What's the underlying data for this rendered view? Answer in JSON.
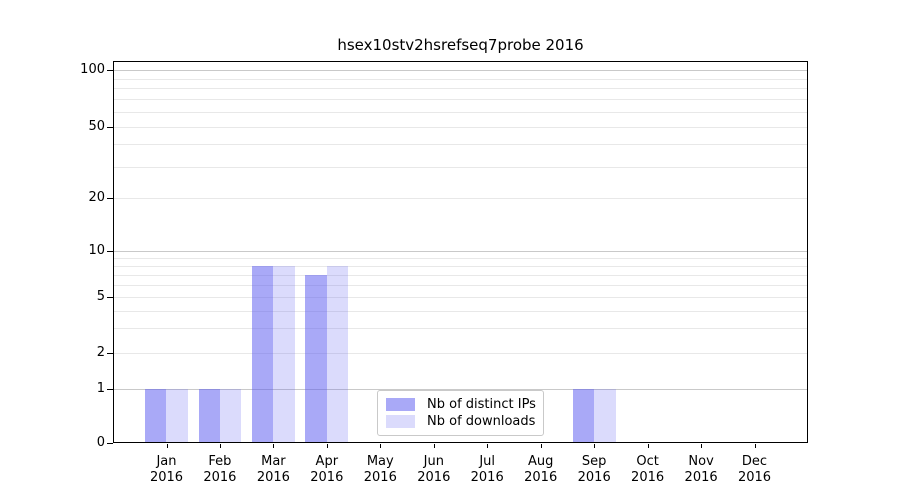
{
  "chart_data": {
    "type": "bar",
    "title": "hsex10stv2hsrefseq7probe 2016",
    "categories": [
      "Jan",
      "Feb",
      "Mar",
      "Apr",
      "May",
      "Jun",
      "Jul",
      "Aug",
      "Sep",
      "Oct",
      "Nov",
      "Dec"
    ],
    "year_label": "2016",
    "series": [
      {
        "name": "Nb of distinct IPs",
        "color": "#5a5af0",
        "alpha": 0.52,
        "values": [
          1,
          1,
          8,
          7,
          0,
          0,
          0,
          0,
          1,
          0,
          0,
          0
        ]
      },
      {
        "name": "Nb of downloads",
        "color": "#5a5af0",
        "alpha": 0.22,
        "values": [
          1,
          1,
          8,
          8,
          0,
          0,
          0,
          0,
          1,
          0,
          0,
          0
        ]
      }
    ],
    "y_ticks": [
      0,
      1,
      2,
      5,
      10,
      20,
      50,
      100
    ],
    "ylim": [
      0,
      100
    ],
    "y_scale": "symlog",
    "grid": "horizontal",
    "legend_position": "inside-bottom-center"
  }
}
